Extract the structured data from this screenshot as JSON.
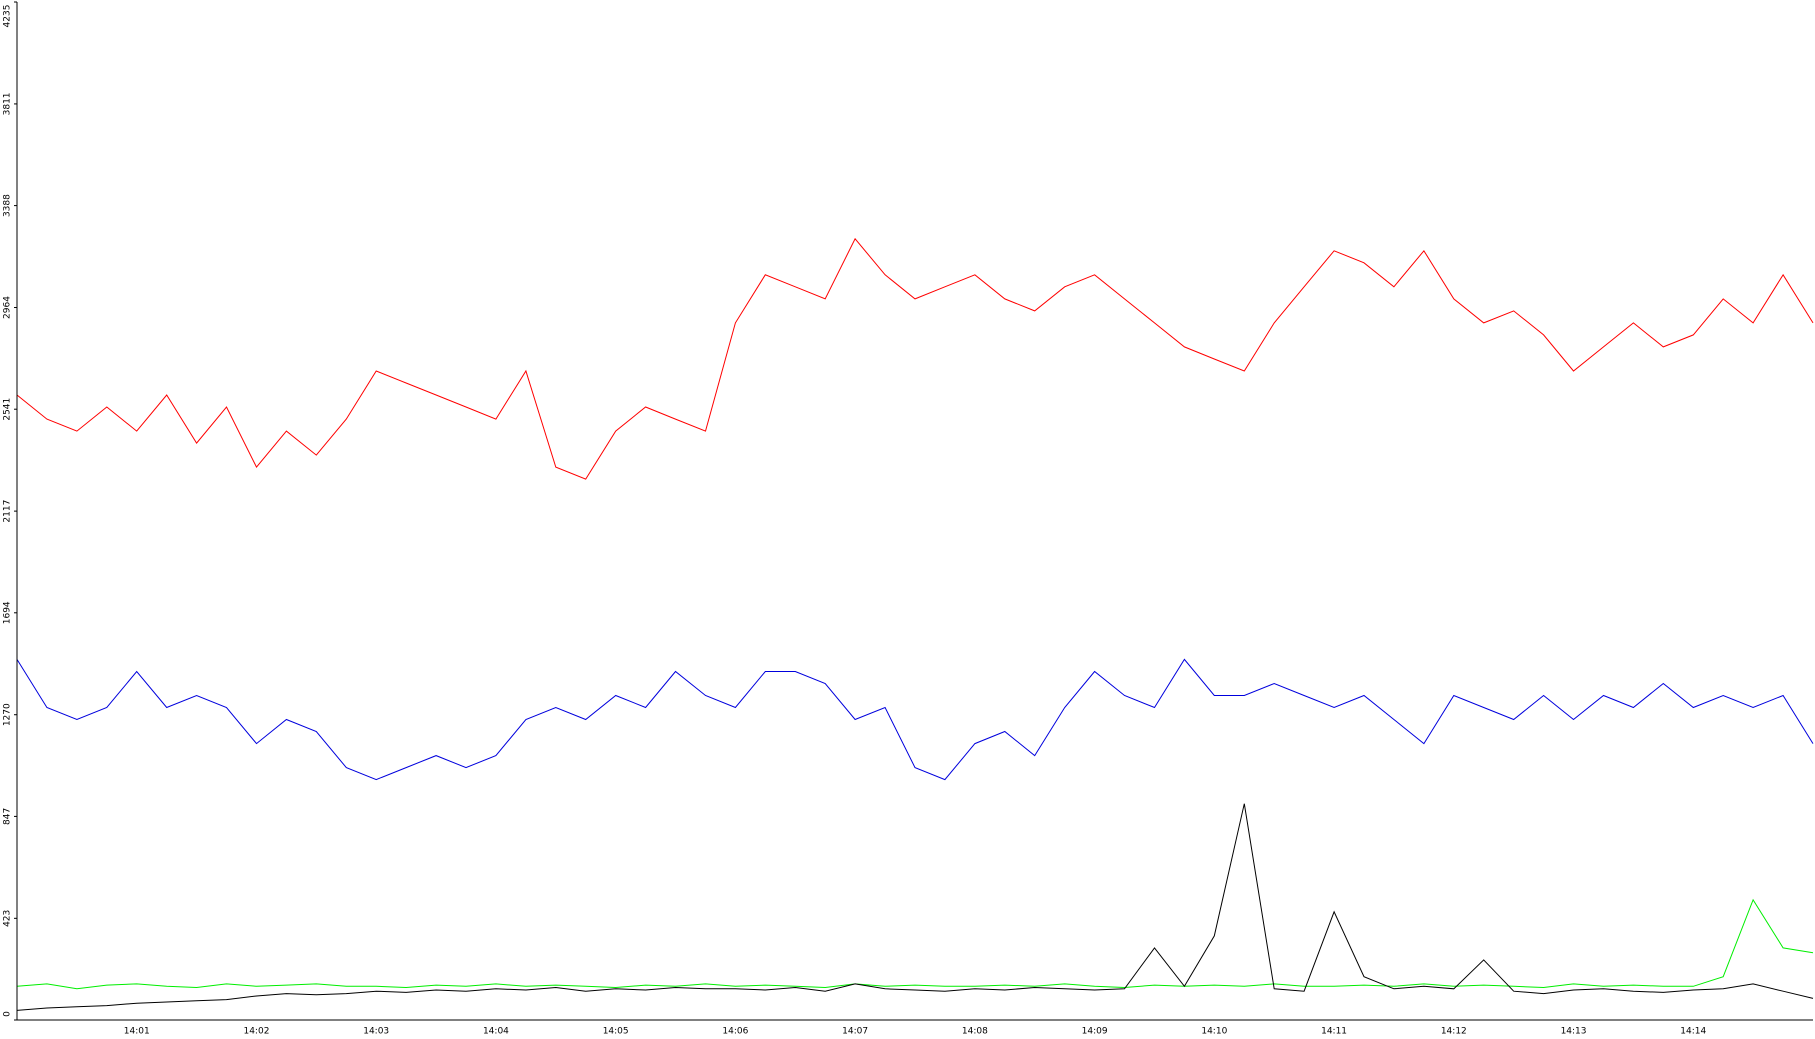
{
  "chart_data": {
    "type": "line",
    "categories": [
      null,
      null,
      null,
      null,
      "14:01",
      null,
      null,
      null,
      "14:02",
      null,
      null,
      null,
      "14:03",
      null,
      null,
      null,
      "14:04",
      null,
      null,
      null,
      "14:05",
      null,
      null,
      null,
      "14:06",
      null,
      null,
      null,
      "14:07",
      null,
      null,
      null,
      "14:08",
      null,
      null,
      null,
      "14:09",
      null,
      null,
      null,
      "14:10",
      null,
      null,
      null,
      "14:11",
      null,
      null,
      null,
      "14:12",
      null,
      null,
      null,
      "14:13",
      null,
      null,
      null,
      "14:14",
      null,
      null,
      null,
      null
    ],
    "ylim": [
      0,
      4235
    ],
    "yticks": [
      0,
      423,
      847,
      1270,
      1694,
      2117,
      2541,
      2964,
      3388,
      3811,
      4235
    ],
    "series": [
      {
        "name": "red",
        "color": "#ff0000",
        "values": [
          2600,
          2500,
          2450,
          2550,
          2450,
          2600,
          2400,
          2550,
          2300,
          2450,
          2350,
          2500,
          2700,
          2650,
          2600,
          2550,
          2500,
          2700,
          2300,
          2250,
          2450,
          2550,
          2500,
          2450,
          2900,
          3100,
          3050,
          3000,
          3250,
          3100,
          3000,
          3050,
          3100,
          3000,
          2950,
          3050,
          3100,
          3000,
          2900,
          2800,
          2750,
          2700,
          2900,
          3050,
          3200,
          3150,
          3050,
          3200,
          3000,
          2900,
          2950,
          2850,
          2700,
          2800,
          2900,
          2800,
          2850,
          3000,
          2900,
          3100,
          2900
        ]
      },
      {
        "name": "blue",
        "color": "#0000dd",
        "values": [
          1500,
          1300,
          1250,
          1300,
          1450,
          1300,
          1350,
          1300,
          1150,
          1250,
          1200,
          1050,
          1000,
          1050,
          1100,
          1050,
          1100,
          1250,
          1300,
          1250,
          1350,
          1300,
          1450,
          1350,
          1300,
          1450,
          1450,
          1400,
          1250,
          1300,
          1050,
          1000,
          1150,
          1200,
          1100,
          1300,
          1450,
          1350,
          1300,
          1500,
          1350,
          1350,
          1400,
          1350,
          1300,
          1350,
          1250,
          1150,
          1350,
          1300,
          1250,
          1350,
          1250,
          1350,
          1300,
          1400,
          1300,
          1350,
          1300,
          1350,
          1150
        ]
      },
      {
        "name": "green",
        "color": "#00ee00",
        "values": [
          140,
          150,
          130,
          145,
          150,
          140,
          135,
          150,
          140,
          145,
          150,
          140,
          140,
          135,
          145,
          140,
          150,
          140,
          145,
          140,
          135,
          145,
          140,
          150,
          140,
          145,
          140,
          135,
          150,
          140,
          145,
          140,
          140,
          145,
          140,
          150,
          140,
          135,
          145,
          140,
          145,
          140,
          150,
          140,
          140,
          145,
          140,
          150,
          140,
          145,
          140,
          135,
          150,
          140,
          145,
          140,
          140,
          180,
          500,
          300,
          280
        ]
      },
      {
        "name": "black",
        "color": "#000000",
        "values": [
          40,
          50,
          55,
          60,
          70,
          75,
          80,
          85,
          100,
          110,
          105,
          110,
          120,
          115,
          125,
          120,
          130,
          125,
          135,
          120,
          130,
          125,
          135,
          130,
          130,
          125,
          135,
          120,
          150,
          130,
          125,
          120,
          130,
          125,
          135,
          130,
          125,
          130,
          300,
          140,
          350,
          900,
          130,
          120,
          450,
          180,
          130,
          140,
          130,
          250,
          120,
          110,
          125,
          130,
          120,
          115,
          125,
          130,
          150,
          120,
          90
        ]
      }
    ]
  }
}
